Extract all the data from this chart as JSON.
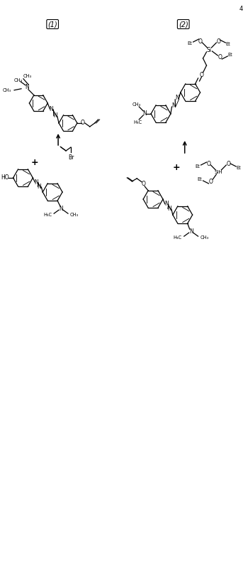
{
  "background": "#ffffff",
  "fig_width": 3.5,
  "fig_height": 7.9,
  "dpi": 100,
  "label1": "(1)",
  "label2": "(2)",
  "page_num": "4"
}
